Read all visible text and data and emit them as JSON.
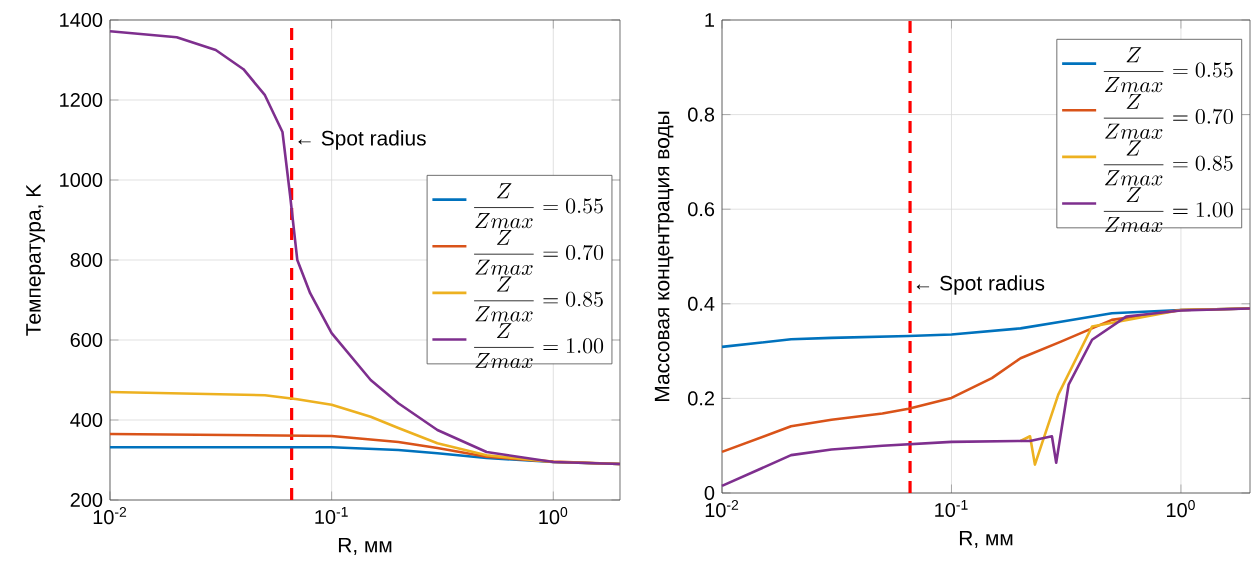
{
  "chart_data": [
    {
      "type": "line",
      "xlabel": "R, мм",
      "ylabel": "Температура, K",
      "log": "x",
      "grid": true,
      "legend": "right",
      "xlim": [
        0.01,
        2
      ],
      "xticks": [
        {
          "value": 0.01,
          "label": "10$^{-2}$"
        },
        {
          "value": 0.1,
          "label": "10$^{-1}$"
        },
        {
          "value": 1,
          "label": "10$^{0}$"
        }
      ],
      "ylim": [
        200,
        1400
      ],
      "yticks": [
        200,
        400,
        600,
        800,
        1000,
        1200,
        1400
      ],
      "series": [
        {
          "name": "\\frac{Z}{Zmax} = 0.55",
          "color": "#0072bd",
          "x": [
            0.01,
            0.1,
            0.2,
            0.3,
            0.5,
            1,
            2
          ],
          "values": [
            332,
            332,
            325,
            317,
            305,
            295,
            290
          ]
        },
        {
          "name": "\\frac{Z}{Zmax} = 0.70",
          "color": "#d95319",
          "x": [
            0.01,
            0.1,
            0.2,
            0.3,
            0.5,
            1,
            2
          ],
          "values": [
            365,
            360,
            345,
            330,
            308,
            296,
            290
          ]
        },
        {
          "name": "\\frac{Z}{Zmax} = 0.85",
          "color": "#edb120",
          "x": [
            0.01,
            0.05,
            0.07,
            0.1,
            0.15,
            0.2,
            0.3,
            0.5,
            1,
            2
          ],
          "values": [
            470,
            462,
            452,
            438,
            408,
            380,
            342,
            312,
            295,
            290
          ]
        },
        {
          "name": "\\frac{Z}{Zmax} = 1.00",
          "color": "#7e2f8e",
          "x": [
            0.01,
            0.02,
            0.03,
            0.04,
            0.05,
            0.06,
            0.065,
            0.07,
            0.08,
            0.1,
            0.15,
            0.2,
            0.3,
            0.5,
            1,
            2
          ],
          "values": [
            1372,
            1357,
            1325,
            1277,
            1212,
            1120,
            960,
            800,
            717,
            617,
            500,
            442,
            375,
            320,
            295,
            290
          ]
        }
      ],
      "ref_lines": [
        {
          "axis": "x",
          "value": 0.066,
          "color": "#ff0000",
          "line_style": "dashed"
        }
      ],
      "annotations": [
        {
          "text": "← Spot radius",
          "x": 0.066,
          "y": 1100
        }
      ]
    },
    {
      "type": "line",
      "xlabel": "R, мм",
      "ylabel": "Массовая концентрация воды",
      "log": "x",
      "grid": true,
      "legend": "top right",
      "xlim": [
        0.01,
        2
      ],
      "xticks": [
        {
          "value": 0.01,
          "label": "10$^{-2}$"
        },
        {
          "value": 0.1,
          "label": "10$^{-1}$"
        },
        {
          "value": 1,
          "label": "10$^{0}$"
        }
      ],
      "ylim": [
        0,
        1
      ],
      "yticks": [
        0,
        0.2,
        0.4,
        0.6,
        0.8,
        1
      ],
      "series": [
        {
          "name": "\\frac{Z}{Zmax} = 0.55",
          "color": "#0072bd",
          "x": [
            0.01,
            0.02,
            0.03,
            0.065,
            0.1,
            0.2,
            0.3,
            0.5,
            1,
            2
          ],
          "values": [
            0.309,
            0.325,
            0.328,
            0.332,
            0.335,
            0.348,
            0.362,
            0.38,
            0.387,
            0.39
          ]
        },
        {
          "name": "\\frac{Z}{Zmax} = 0.70",
          "color": "#d95319",
          "x": [
            0.01,
            0.02,
            0.03,
            0.05,
            0.065,
            0.1,
            0.15,
            0.2,
            0.3,
            0.5,
            1,
            2
          ],
          "values": [
            0.087,
            0.141,
            0.155,
            0.168,
            0.178,
            0.201,
            0.243,
            0.285,
            0.32,
            0.366,
            0.387,
            0.39
          ]
        },
        {
          "name": "\\frac{Z}{Zmax} = 0.85",
          "color": "#edb120",
          "x": [
            0.2,
            0.22,
            0.231,
            0.292,
            0.41,
            1,
            2
          ],
          "values": [
            0.11,
            0.12,
            0.06,
            0.208,
            0.352,
            0.387,
            0.39
          ]
        },
        {
          "name": "\\frac{Z}{Zmax} = 1.00",
          "color": "#7e2f8e",
          "x": [
            0.01,
            0.02,
            0.03,
            0.05,
            0.1,
            0.2,
            0.22,
            0.274,
            0.286,
            0.324,
            0.41,
            0.577,
            1,
            2
          ],
          "values": [
            0.015,
            0.08,
            0.092,
            0.1,
            0.108,
            0.11,
            0.11,
            0.12,
            0.064,
            0.229,
            0.324,
            0.373,
            0.386,
            0.39
          ]
        }
      ],
      "ref_lines": [
        {
          "axis": "x",
          "value": 0.066,
          "color": "#ff0000",
          "line_style": "dashed"
        }
      ],
      "annotations": [
        {
          "text": "← Spot radius",
          "x": 0.066,
          "y": 0.44
        }
      ]
    }
  ]
}
